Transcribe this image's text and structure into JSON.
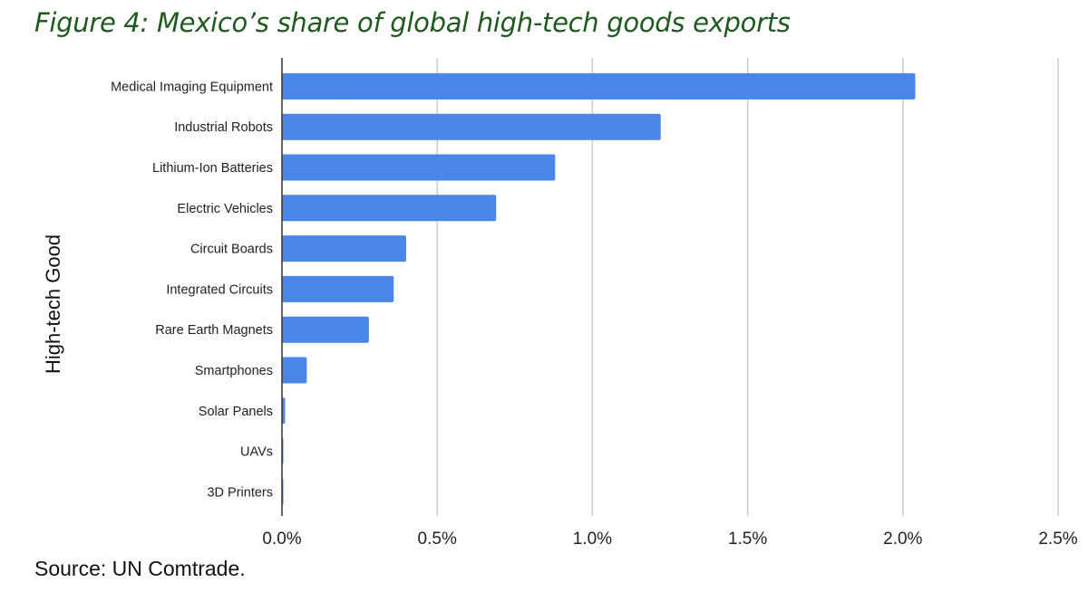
{
  "title": "Figure 4: Mexico’s share of global high-tech goods exports",
  "source": "Source: UN Comtrade.",
  "colors": {
    "bar": "#4a86e8",
    "grid": "#cccccc",
    "title": "#1e5a1e"
  },
  "chart_data": {
    "type": "bar",
    "orientation": "horizontal",
    "categories": [
      "Medical Imaging Equipment",
      "Industrial Robots",
      "Lithium-Ion Batteries",
      "Electric Vehicles",
      "Circuit Boards",
      "Integrated Circuits",
      "Rare Earth Magnets",
      "Smartphones",
      "Solar Panels",
      "UAVs",
      "3D Printers"
    ],
    "values": [
      2.04,
      1.22,
      0.88,
      0.69,
      0.4,
      0.36,
      0.28,
      0.08,
      0.01,
      0.004,
      0.003
    ],
    "ylabel": "High-tech Good",
    "xlim": [
      0,
      2.5
    ],
    "x_ticks": [
      0,
      0.5,
      1.0,
      1.5,
      2.0,
      2.5
    ],
    "x_tick_labels": [
      "0.0%",
      "0.5%",
      "1.0%",
      "1.5%",
      "2.0%",
      "2.5%"
    ],
    "grid": "vertical",
    "legend": "none"
  }
}
